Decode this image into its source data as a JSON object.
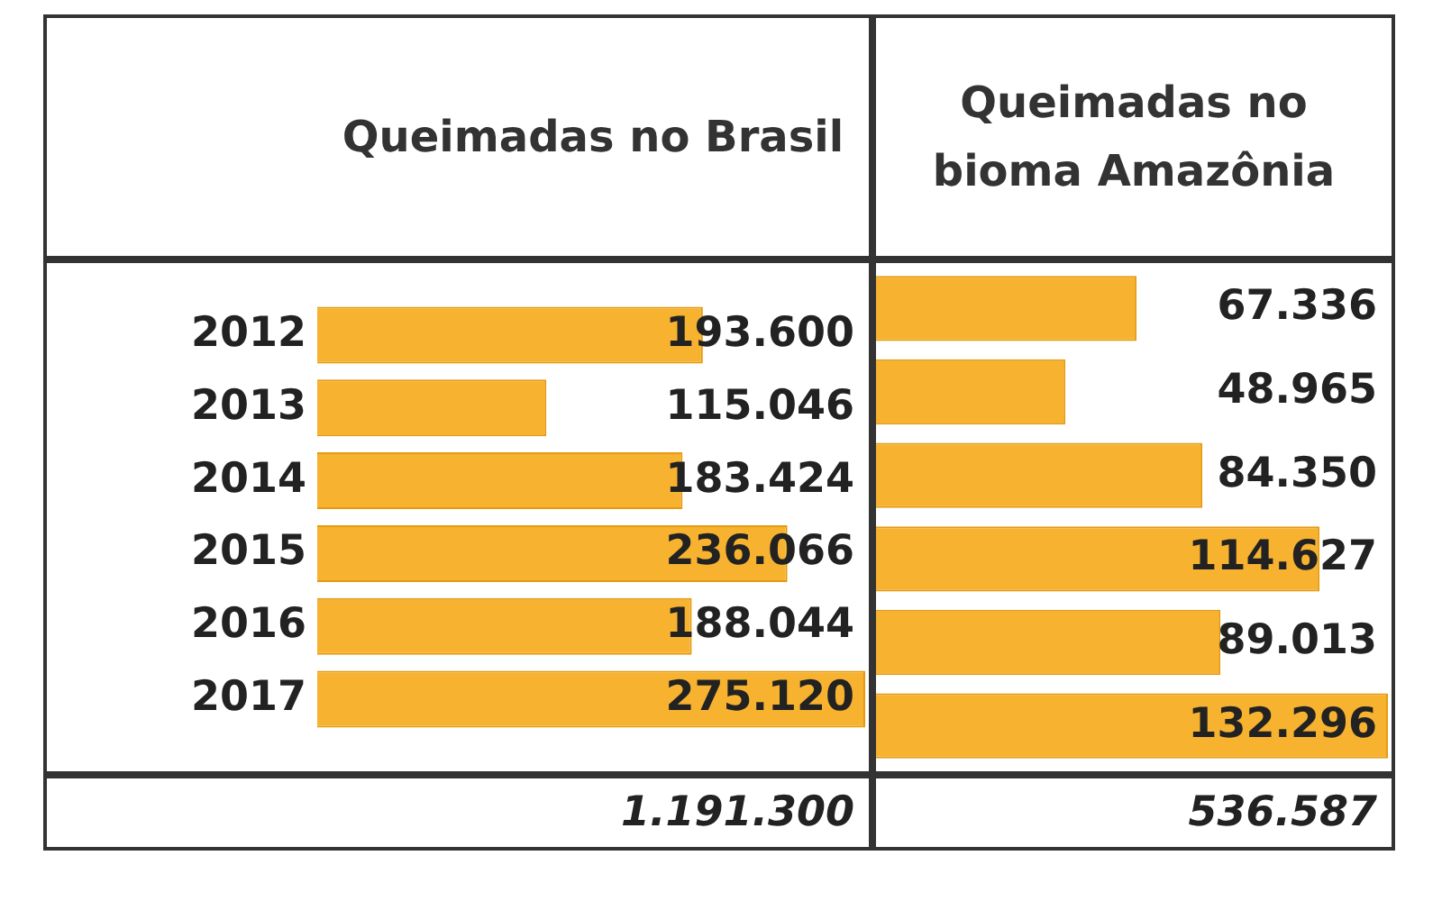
{
  "chart_data": [
    {
      "type": "bar",
      "orientation": "horizontal",
      "title": "Queimadas no Brasil",
      "categories": [
        "2012",
        "2013",
        "2014",
        "2015",
        "2016",
        "2017"
      ],
      "values": [
        193600,
        115046,
        183424,
        236066,
        188044,
        275120
      ],
      "value_labels": [
        "193.600",
        "115.046",
        "183.424",
        "236.066",
        "188.044",
        "275.120"
      ],
      "color": "#f7b230",
      "tick_labels": "y",
      "annotations": [
        "1.191.300"
      ]
    },
    {
      "type": "bar",
      "orientation": "horizontal",
      "title": "Queimadas no bioma Amazônia",
      "categories": [
        "2012",
        "2013",
        "2014",
        "2015",
        "2016",
        "2017"
      ],
      "values": [
        67336,
        48965,
        84350,
        114627,
        89013,
        132296
      ],
      "value_labels": [
        "67.336",
        "48.965",
        "84.350",
        "114.627",
        "89.013",
        "132.296"
      ],
      "color": "#f7b230",
      "tick_labels": false,
      "annotations": [
        "536.587"
      ]
    }
  ]
}
